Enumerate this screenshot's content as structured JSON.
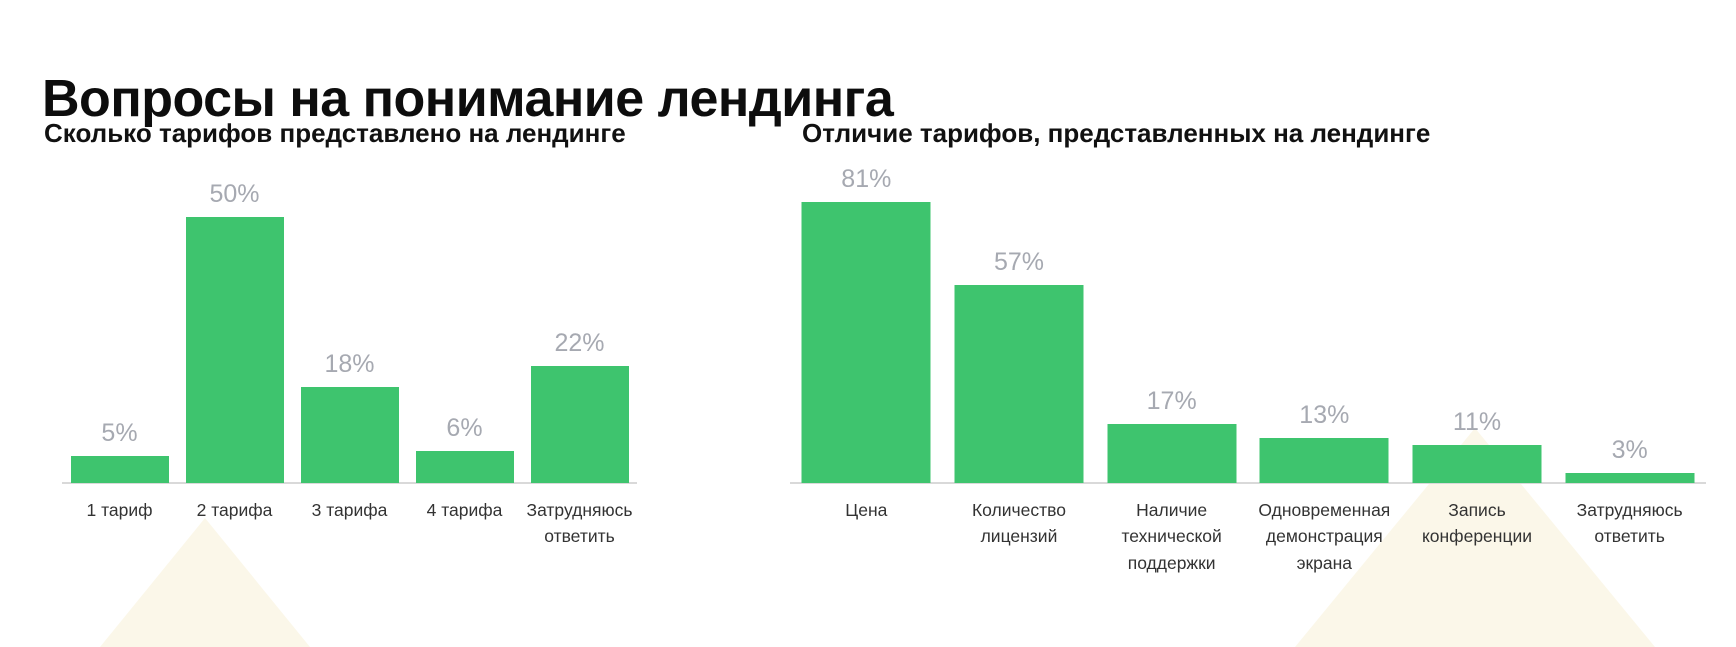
{
  "page_title": "Вопросы на понимание лендинга",
  "accent_color": "#3ec46e",
  "value_label_color": "#a6a9b1",
  "decor_triangle_color": "#fbf7e9",
  "chart_data": [
    {
      "type": "bar",
      "title": "Сколько тарифов представлено на лендинге",
      "categories": [
        "1 тариф",
        "2 тарифа",
        "3 тарифа",
        "4 тарифа",
        "Затрудняюсь ответить"
      ],
      "values": [
        5,
        50,
        18,
        6,
        22
      ],
      "value_labels": [
        "5%",
        "50%",
        "18%",
        "6%",
        "22%"
      ],
      "unit": "%",
      "xlabel": "",
      "ylabel": "",
      "ylim": [
        0,
        64
      ],
      "grid": false,
      "legend": false,
      "bar_color": "#3ec46e"
    },
    {
      "type": "bar",
      "title": "Отличие тарифов, представленных на лендинге",
      "categories": [
        "Цена",
        "Количество лицензий",
        "Наличие технической поддержки",
        "Одновременная демонстрация экрана",
        "Запись конференции",
        "Затрудняюсь ответить"
      ],
      "values": [
        81,
        57,
        17,
        13,
        11,
        3
      ],
      "value_labels": [
        "81%",
        "57%",
        "17%",
        "13%",
        "11%",
        "3%"
      ],
      "unit": "%",
      "xlabel": "",
      "ylabel": "",
      "ylim": [
        0,
        98
      ],
      "grid": false,
      "legend": false,
      "bar_color": "#3ec46e"
    }
  ]
}
